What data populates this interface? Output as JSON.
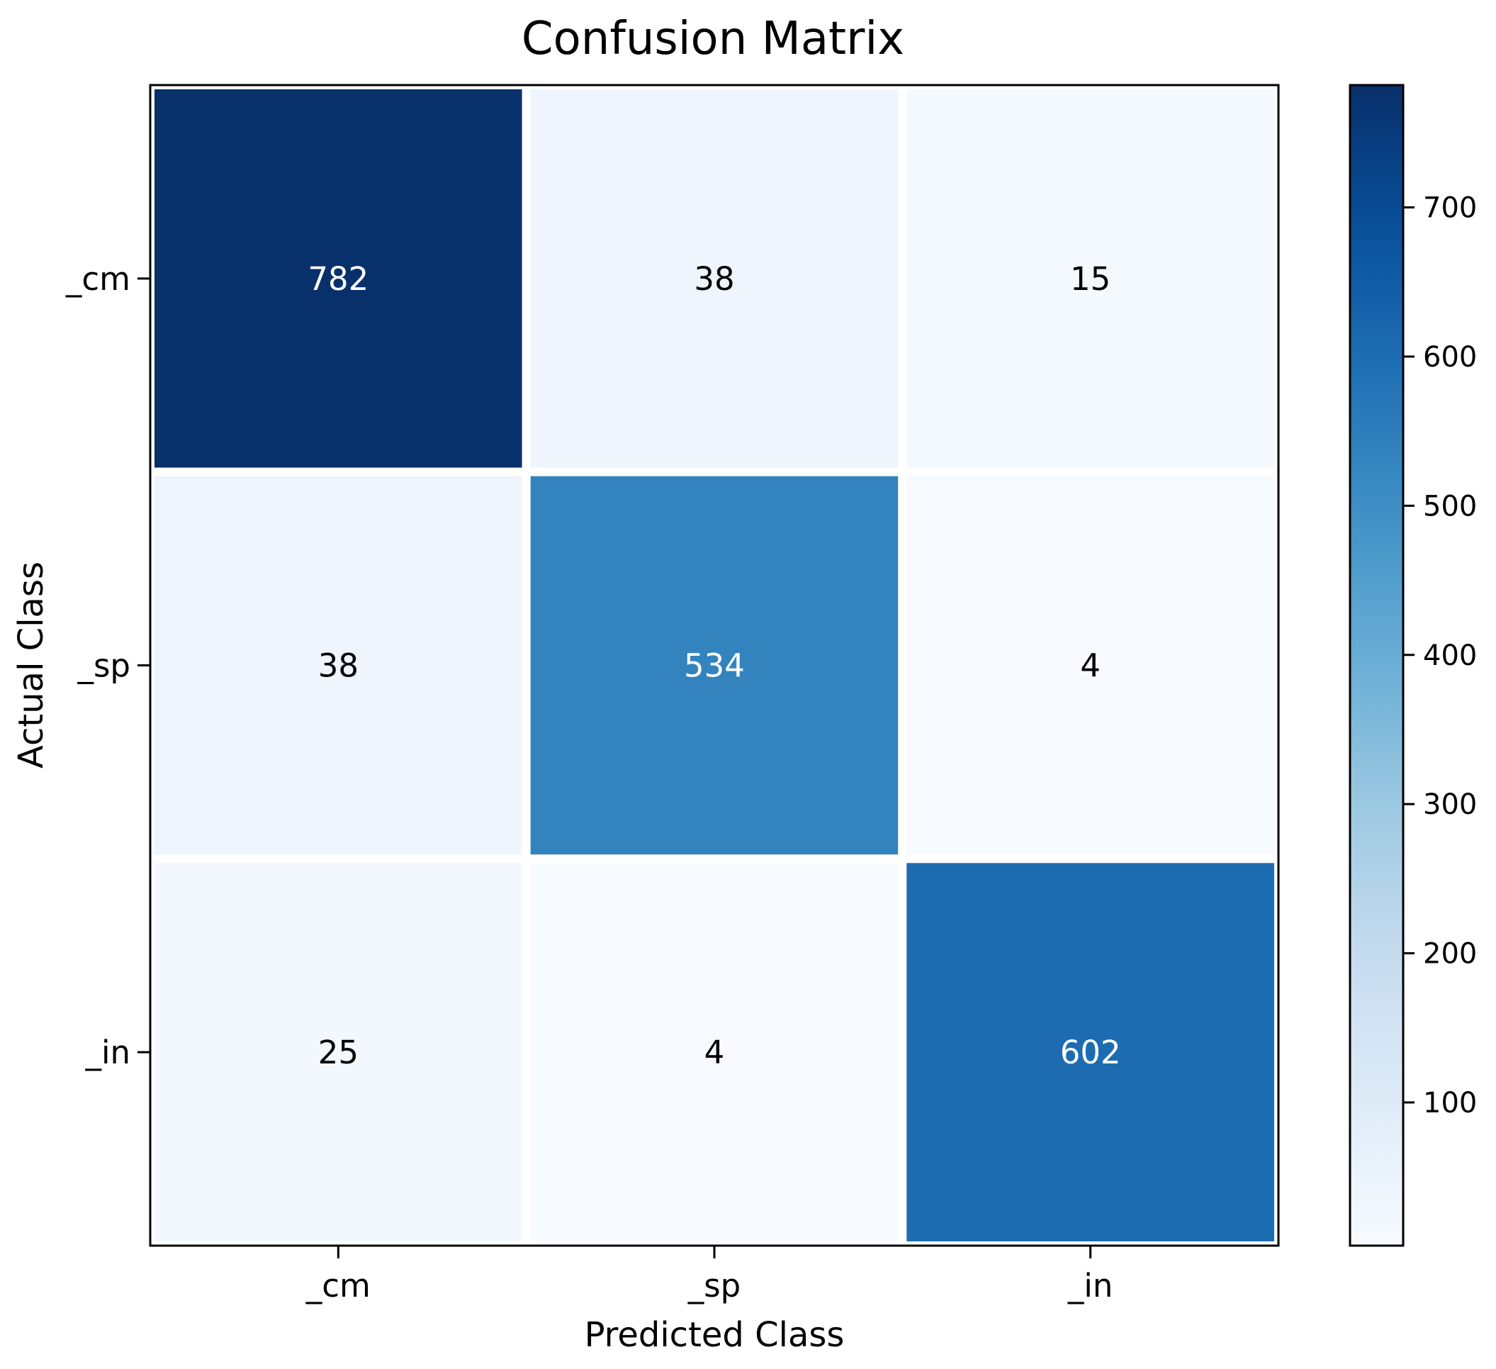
{
  "chart_data": {
    "type": "heatmap",
    "title": "Confusion Matrix",
    "xlabel": "Predicted Class",
    "ylabel": "Actual Class",
    "x_categories": [
      "_cm",
      "_sp",
      "_in"
    ],
    "y_categories": [
      "_cm",
      "_sp",
      "_in"
    ],
    "values": [
      [
        782,
        38,
        15
      ],
      [
        38,
        534,
        4
      ],
      [
        25,
        4,
        602
      ]
    ],
    "colormap": "Blues",
    "colorbar": {
      "range": [
        4,
        782
      ],
      "ticks": [
        100,
        200,
        300,
        400,
        500,
        600,
        700
      ]
    },
    "colors": {
      "cell_border": "#ffffff",
      "text_light": "#ffffff",
      "text_dark": "#000000"
    }
  }
}
